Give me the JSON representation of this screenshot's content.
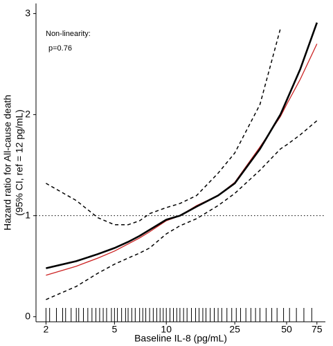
{
  "chart_data": {
    "type": "line",
    "annotations": [
      "Non-linearity:",
      "p=0.76"
    ],
    "xlabel": "Baseline IL-8 (pg/mL)",
    "ylabel": [
      "Hazard ratio for All-cause death",
      "(95% CI, ref = 12 pg/mL)"
    ],
    "log_x": true,
    "x": [
      2,
      3,
      4,
      5,
      6,
      7,
      8,
      10,
      12,
      15,
      20,
      25,
      35,
      46,
      50,
      60,
      75
    ],
    "series": [
      {
        "color": "#000000",
        "dash": "5,4",
        "width": 1.5,
        "values": [
          1.32,
          1.15,
          0.98,
          0.91,
          0.91,
          0.95,
          1.02,
          1.08,
          1.12,
          1.2,
          1.42,
          1.62,
          2.1,
          2.85,
          null,
          null,
          null
        ]
      },
      {
        "color": "#000000",
        "dash": "5,4",
        "width": 1.5,
        "values": [
          0.17,
          0.3,
          0.43,
          0.52,
          0.58,
          0.63,
          0.68,
          0.82,
          0.9,
          0.97,
          1.1,
          1.22,
          1.45,
          1.66,
          1.7,
          1.8,
          1.94
        ]
      },
      {
        "color": "#cc2222",
        "dash": "",
        "width": 1.3,
        "values": [
          0.41,
          0.5,
          0.58,
          0.65,
          0.72,
          0.78,
          0.84,
          0.95,
          1.0,
          1.1,
          1.2,
          1.33,
          1.68,
          1.98,
          2.1,
          2.35,
          2.7
        ]
      },
      {
        "color": "#000000",
        "dash": "",
        "width": 2.6,
        "values": [
          0.48,
          0.55,
          0.62,
          0.68,
          0.74,
          0.8,
          0.86,
          0.96,
          1.0,
          1.09,
          1.2,
          1.32,
          1.66,
          2.0,
          2.14,
          2.45,
          2.91
        ]
      }
    ],
    "reference_line": 1,
    "rug": [
      2,
      2.1,
      2.3,
      2.5,
      2.6,
      2.8,
      3,
      3.1,
      3.3,
      3.5,
      3.7,
      3.9,
      4.1,
      4.3,
      4.5,
      4.8,
      5,
      5.2,
      5.5,
      5.8,
      6,
      6.3,
      6.6,
      7,
      7.3,
      7.6,
      8,
      8.4,
      8.8,
      9.2,
      9.6,
      10,
      10.5,
      11,
      11.5,
      12,
      12.6,
      13.2,
      14,
      14.8,
      15.5,
      16.3,
      17,
      18,
      19,
      20,
      21,
      22.5,
      24,
      25.5,
      27,
      29,
      31,
      33,
      35,
      38,
      41,
      44,
      48,
      52,
      57,
      63,
      70
    ],
    "xlim": [
      1.75,
      84
    ],
    "ylim": [
      -0.05,
      3.1
    ],
    "xticks": [
      2,
      5,
      10,
      25,
      50,
      75
    ],
    "yticks": [
      0,
      1,
      2,
      3
    ]
  }
}
